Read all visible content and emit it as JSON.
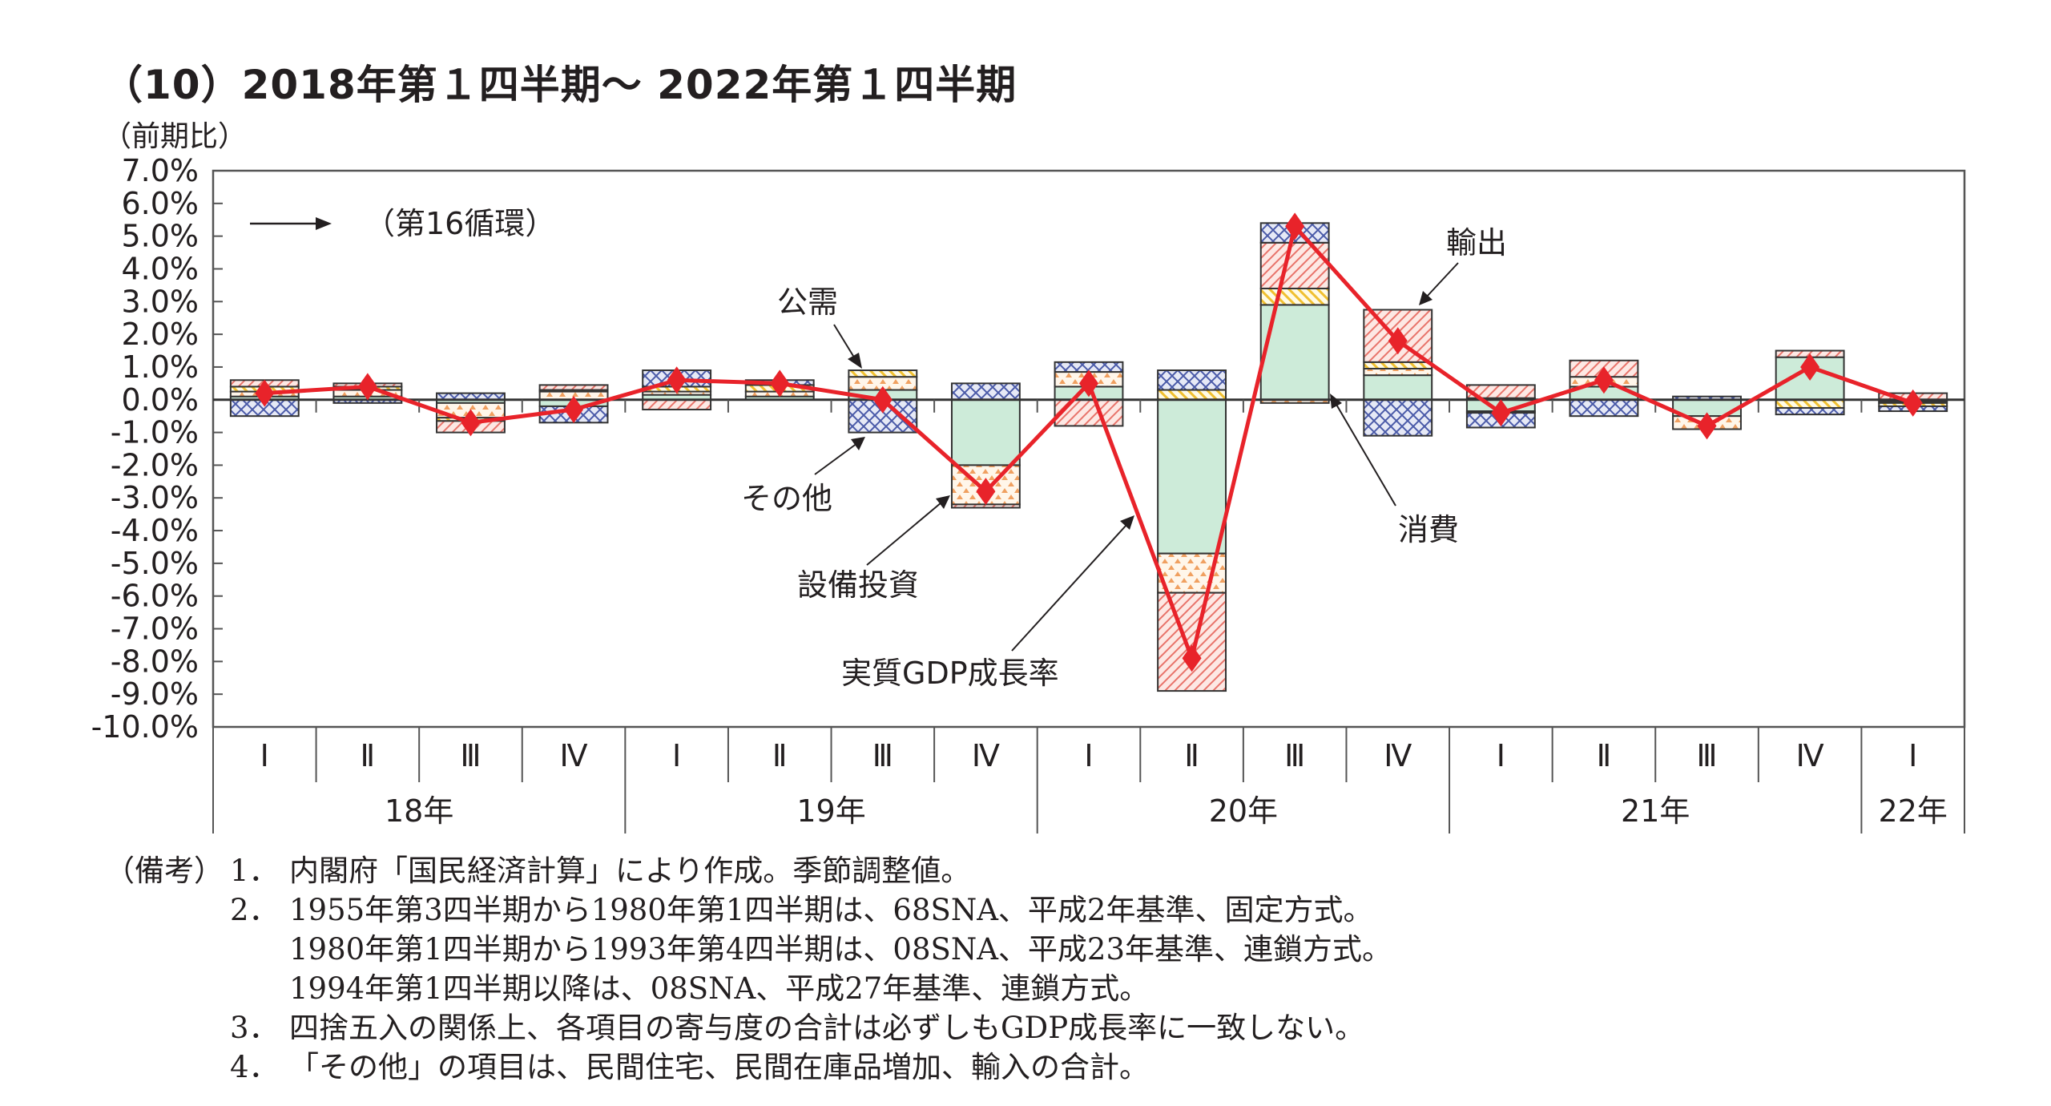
{
  "title": "（10）2018年第１四半期～ 2022年第１四半期",
  "chart_data": {
    "type": "bar",
    "stacked": true,
    "ylabel": "（前期比）",
    "ylim": [
      -10,
      7
    ],
    "yticks": [
      "7.0%",
      "6.0%",
      "5.0%",
      "4.0%",
      "3.0%",
      "2.0%",
      "1.0%",
      "0.0%",
      "-1.0%",
      "-2.0%",
      "-3.0%",
      "-4.0%",
      "-5.0%",
      "-6.0%",
      "-7.0%",
      "-8.0%",
      "-9.0%",
      "-10.0%"
    ],
    "categories": [
      "Ⅰ",
      "Ⅱ",
      "Ⅲ",
      "Ⅳ",
      "Ⅰ",
      "Ⅱ",
      "Ⅲ",
      "Ⅳ",
      "Ⅰ",
      "Ⅱ",
      "Ⅲ",
      "Ⅳ",
      "Ⅰ",
      "Ⅱ",
      "Ⅲ",
      "Ⅳ",
      "Ⅰ"
    ],
    "years": [
      {
        "label": "18年",
        "quarters": 4
      },
      {
        "label": "19年",
        "quarters": 4
      },
      {
        "label": "20年",
        "quarters": 4
      },
      {
        "label": "21年",
        "quarters": 4
      },
      {
        "label": "22年",
        "quarters": 1
      }
    ],
    "grid": false,
    "series": [
      {
        "name": "消費",
        "color": "#cdebd9",
        "pattern": "solid",
        "values": [
          0.1,
          0.1,
          -0.1,
          -0.2,
          0.15,
          0.1,
          0.3,
          -2.0,
          0.4,
          -4.7,
          2.9,
          0.75,
          -0.35,
          0.4,
          -0.5,
          1.3,
          -0.05
        ]
      },
      {
        "name": "設備投資",
        "color": "#f0a060",
        "pattern": "triangles",
        "values": [
          0.15,
          0.2,
          -0.45,
          0.25,
          0.1,
          0.15,
          0.4,
          -1.2,
          0.45,
          -1.2,
          -0.1,
          0.2,
          -0.05,
          0.3,
          -0.4,
          0.0,
          -0.05
        ]
      },
      {
        "name": "公需",
        "color": "#f0c030",
        "pattern": "stripes",
        "values": [
          0.15,
          0.1,
          -0.1,
          0.05,
          0.15,
          0.2,
          0.2,
          0.0,
          0.0,
          0.3,
          0.5,
          0.2,
          0.05,
          0.0,
          0.0,
          -0.25,
          -0.1
        ]
      },
      {
        "name": "輸出",
        "color": "#e8736a",
        "pattern": "hatch",
        "values": [
          0.2,
          0.1,
          -0.35,
          0.15,
          -0.3,
          0.0,
          0.0,
          -0.1,
          -0.8,
          -3.0,
          1.4,
          1.6,
          0.4,
          0.5,
          0.0,
          0.2,
          0.2
        ]
      },
      {
        "name": "その他",
        "color": "#4a5aa8",
        "pattern": "crosshatch",
        "values": [
          -0.5,
          -0.1,
          0.2,
          -0.5,
          0.5,
          0.15,
          -1.0,
          0.5,
          0.3,
          0.6,
          0.6,
          -1.1,
          -0.45,
          -0.5,
          0.1,
          -0.2,
          -0.15
        ]
      }
    ],
    "line": {
      "name": "実質GDP成長率",
      "color": "#e8232a",
      "values": [
        0.2,
        0.4,
        -0.7,
        -0.3,
        0.6,
        0.5,
        0.0,
        -2.8,
        0.5,
        -7.9,
        5.3,
        1.8,
        -0.4,
        0.6,
        -0.8,
        1.0,
        -0.1
      ]
    },
    "annotations": {
      "cycle": "（第16循環）",
      "public_demand": "公需",
      "other": "その他",
      "capex": "設備投資",
      "gdp": "実質GDP成長率",
      "consumption": "消費",
      "exports": "輸出"
    }
  },
  "notes": {
    "head": "（備考）",
    "items": [
      {
        "num": "1．",
        "lines": [
          "内閣府「国民経済計算」により作成。季節調整値。"
        ]
      },
      {
        "num": "2．",
        "lines": [
          "1955年第3四半期から1980年第1四半期は、68SNA、平成2年基準、固定方式。",
          "1980年第1四半期から1993年第4四半期は、08SNA、平成23年基準、連鎖方式。",
          "1994年第1四半期以降は、08SNA、平成27年基準、連鎖方式。"
        ]
      },
      {
        "num": "3．",
        "lines": [
          "四捨五入の関係上、各項目の寄与度の合計は必ずしもGDP成長率に一致しない。"
        ]
      },
      {
        "num": "4．",
        "lines": [
          "「その他」の項目は、民間住宅、民間在庫品増加、輸入の合計。"
        ]
      }
    ]
  }
}
